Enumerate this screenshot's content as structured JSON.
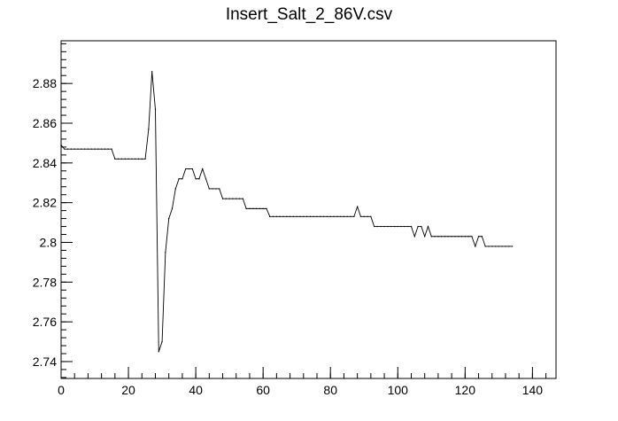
{
  "chart_data": {
    "type": "line",
    "title": "Insert_Salt_2_86V.csv",
    "xlabel": "",
    "ylabel": "",
    "xlim": [
      0,
      147
    ],
    "ylim": [
      2.7315,
      2.9015
    ],
    "x_ticks": [
      0,
      20,
      40,
      60,
      80,
      100,
      120,
      140
    ],
    "y_ticks": [
      2.74,
      2.76,
      2.78,
      2.8,
      2.82,
      2.84,
      2.86,
      2.88
    ],
    "x_tick_labels": [
      "0",
      "20",
      "40",
      "60",
      "80",
      "100",
      "120",
      "140"
    ],
    "y_tick_labels": [
      "2.74",
      "2.76",
      "2.78",
      "2.8",
      "2.82",
      "2.84",
      "2.86",
      "2.88"
    ],
    "grid": false,
    "series": [
      {
        "x": [
          0,
          1,
          2,
          3,
          4,
          5,
          6,
          7,
          8,
          9,
          10,
          11,
          12,
          13,
          14,
          15,
          16,
          17,
          18,
          19,
          20,
          21,
          22,
          23,
          24,
          25,
          26,
          27,
          28,
          29,
          30,
          31,
          32,
          33,
          34,
          35,
          36,
          37,
          38,
          39,
          40,
          41,
          42,
          43,
          44,
          45,
          46,
          47,
          48,
          49,
          50,
          51,
          52,
          53,
          54,
          55,
          56,
          57,
          58,
          59,
          60,
          61,
          62,
          63,
          64,
          65,
          66,
          67,
          68,
          69,
          70,
          71,
          72,
          73,
          74,
          75,
          76,
          77,
          78,
          79,
          80,
          81,
          82,
          83,
          84,
          85,
          86,
          87,
          88,
          89,
          90,
          91,
          92,
          93,
          94,
          95,
          96,
          97,
          98,
          99,
          100,
          101,
          102,
          103,
          104,
          105,
          106,
          107,
          108,
          109,
          110,
          111,
          112,
          113,
          114,
          115,
          116,
          117,
          118,
          119,
          120,
          121,
          122,
          123,
          124,
          125,
          126,
          127,
          128,
          129,
          130,
          131,
          132,
          133,
          134
        ],
        "y": [
          2.849,
          2.847,
          2.847,
          2.847,
          2.847,
          2.847,
          2.847,
          2.847,
          2.847,
          2.847,
          2.847,
          2.847,
          2.847,
          2.847,
          2.847,
          2.847,
          2.842,
          2.842,
          2.842,
          2.842,
          2.842,
          2.842,
          2.842,
          2.842,
          2.842,
          2.842,
          2.857,
          2.886,
          2.867,
          2.745,
          2.75,
          2.795,
          2.812,
          2.817,
          2.827,
          2.832,
          2.832,
          2.837,
          2.837,
          2.837,
          2.832,
          2.832,
          2.837,
          2.832,
          2.827,
          2.827,
          2.827,
          2.827,
          2.822,
          2.822,
          2.822,
          2.822,
          2.822,
          2.822,
          2.822,
          2.817,
          2.817,
          2.817,
          2.817,
          2.817,
          2.817,
          2.817,
          2.813,
          2.813,
          2.813,
          2.813,
          2.813,
          2.813,
          2.813,
          2.813,
          2.813,
          2.813,
          2.813,
          2.813,
          2.813,
          2.813,
          2.813,
          2.813,
          2.813,
          2.813,
          2.813,
          2.813,
          2.813,
          2.813,
          2.813,
          2.813,
          2.813,
          2.813,
          2.818,
          2.813,
          2.813,
          2.813,
          2.813,
          2.808,
          2.808,
          2.808,
          2.808,
          2.808,
          2.808,
          2.808,
          2.808,
          2.808,
          2.808,
          2.808,
          2.808,
          2.803,
          2.808,
          2.808,
          2.803,
          2.808,
          2.803,
          2.803,
          2.803,
          2.803,
          2.803,
          2.803,
          2.803,
          2.803,
          2.803,
          2.803,
          2.803,
          2.803,
          2.803,
          2.798,
          2.803,
          2.803,
          2.798,
          2.798,
          2.798,
          2.798,
          2.798,
          2.798,
          2.798,
          2.798,
          2.798
        ]
      }
    ]
  }
}
